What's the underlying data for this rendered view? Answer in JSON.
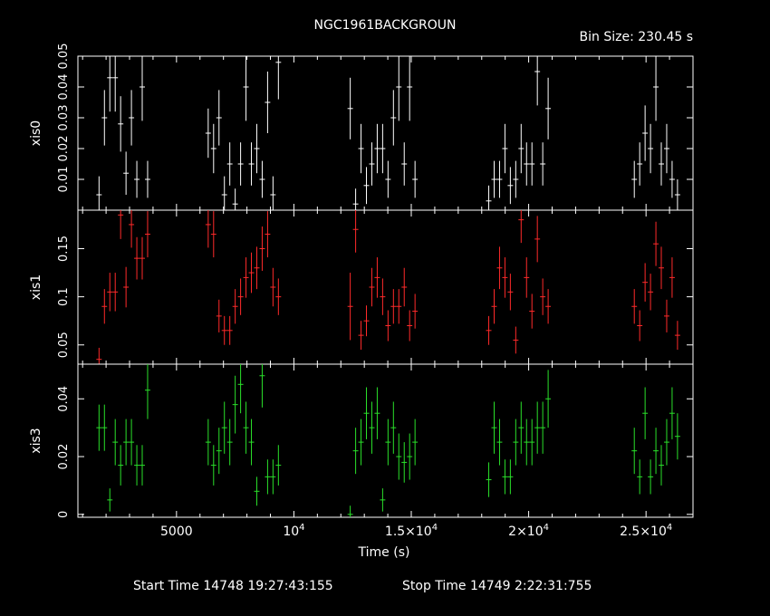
{
  "title": "NGC1961BACKGROUN",
  "bin_size_label": "Bin Size: 230.45 s",
  "footer": {
    "start_label": "Start Time 14748 19:27:43:155",
    "stop_label": "Stop Time 14749  2:22:31:755"
  },
  "chart_data": [
    {
      "type": "scatter",
      "ylabel": "xis0",
      "color": "#ffffff",
      "xlim": [
        800,
        27000
      ],
      "ylim": [
        0,
        0.05
      ],
      "ytick_values": [
        0.01,
        0.02,
        0.03,
        0.04,
        0.05
      ],
      "ytick_labels": [
        "0.01",
        "0.02",
        "0.03",
        "0.04",
        "0.05"
      ],
      "x": [
        1700,
        1930,
        2160,
        2390,
        2620,
        2850,
        3080,
        3310,
        3540,
        3770,
        6350,
        6580,
        6810,
        7040,
        7270,
        7500,
        7730,
        7960,
        8190,
        8420,
        8650,
        8880,
        9110,
        9340,
        12400,
        12630,
        12860,
        13090,
        13320,
        13550,
        13780,
        14010,
        14240,
        14470,
        14700,
        14930,
        15160,
        18300,
        18530,
        18760,
        18990,
        19220,
        19450,
        19680,
        19910,
        20140,
        20370,
        20600,
        20830,
        24500,
        24730,
        24960,
        25190,
        25420,
        25650,
        25880,
        26110,
        26340
      ],
      "y": [
        0.005,
        0.03,
        0.043,
        0.043,
        0.028,
        0.012,
        0.03,
        0.01,
        0.04,
        0.01,
        0.025,
        0.02,
        0.03,
        0.005,
        0.015,
        0.002,
        0.015,
        0.04,
        0.015,
        0.02,
        0.01,
        0.035,
        0.005,
        0.048,
        0.033,
        0.002,
        0.02,
        0.008,
        0.015,
        0.02,
        0.02,
        0.01,
        0.03,
        0.04,
        0.015,
        0.04,
        0.01,
        0.003,
        0.01,
        0.01,
        0.02,
        0.008,
        0.01,
        0.02,
        0.015,
        0.015,
        0.045,
        0.015,
        0.033,
        0.01,
        0.015,
        0.025,
        0.02,
        0.04,
        0.015,
        0.02,
        0.01,
        0.005
      ],
      "err": [
        0.006,
        0.009,
        0.011,
        0.011,
        0.009,
        0.007,
        0.009,
        0.006,
        0.011,
        0.006,
        0.008,
        0.008,
        0.009,
        0.006,
        0.007,
        0.005,
        0.007,
        0.011,
        0.007,
        0.008,
        0.006,
        0.01,
        0.006,
        0.012,
        0.01,
        0.005,
        0.008,
        0.006,
        0.007,
        0.008,
        0.008,
        0.006,
        0.009,
        0.011,
        0.007,
        0.011,
        0.006,
        0.005,
        0.006,
        0.006,
        0.008,
        0.006,
        0.006,
        0.008,
        0.007,
        0.007,
        0.011,
        0.007,
        0.01,
        0.006,
        0.007,
        0.009,
        0.008,
        0.011,
        0.007,
        0.008,
        0.006,
        0.005
      ]
    },
    {
      "type": "scatter",
      "ylabel": "xis1",
      "color": "#ff2a2a",
      "xlim": [
        800,
        27000
      ],
      "ylim": [
        0.03,
        0.19
      ],
      "ytick_values": [
        0.05,
        0.1,
        0.15
      ],
      "ytick_labels": [
        "0.05",
        "0.1",
        "0.15"
      ],
      "x": [
        1700,
        1930,
        2160,
        2390,
        2620,
        2850,
        3080,
        3310,
        3540,
        3770,
        6350,
        6580,
        6810,
        7040,
        7270,
        7500,
        7730,
        7960,
        8190,
        8420,
        8650,
        8880,
        9110,
        9340,
        12400,
        12630,
        12860,
        13090,
        13320,
        13550,
        13780,
        14010,
        14240,
        14470,
        14700,
        14930,
        15160,
        18300,
        18530,
        18760,
        18990,
        19220,
        19450,
        19680,
        19910,
        20140,
        20370,
        20600,
        20830,
        24500,
        24730,
        24960,
        25190,
        25420,
        25650,
        25880,
        26110,
        26340
      ],
      "y": [
        0.035,
        0.09,
        0.105,
        0.105,
        0.185,
        0.11,
        0.175,
        0.14,
        0.14,
        0.165,
        0.175,
        0.165,
        0.08,
        0.065,
        0.065,
        0.09,
        0.1,
        0.12,
        0.125,
        0.13,
        0.15,
        0.165,
        0.11,
        0.1,
        0.09,
        0.17,
        0.06,
        0.075,
        0.11,
        0.12,
        0.1,
        0.07,
        0.09,
        0.09,
        0.11,
        0.07,
        0.085,
        0.065,
        0.09,
        0.13,
        0.12,
        0.105,
        0.055,
        0.18,
        0.12,
        0.085,
        0.16,
        0.1,
        0.09,
        0.09,
        0.07,
        0.115,
        0.105,
        0.155,
        0.13,
        0.08,
        0.12,
        0.06
      ],
      "err": [
        0.012,
        0.018,
        0.02,
        0.02,
        0.025,
        0.021,
        0.024,
        0.022,
        0.022,
        0.024,
        0.024,
        0.024,
        0.017,
        0.015,
        0.015,
        0.018,
        0.019,
        0.021,
        0.021,
        0.022,
        0.023,
        0.024,
        0.02,
        0.019,
        0.035,
        0.024,
        0.015,
        0.016,
        0.02,
        0.021,
        0.019,
        0.016,
        0.018,
        0.018,
        0.02,
        0.016,
        0.018,
        0.015,
        0.018,
        0.022,
        0.021,
        0.019,
        0.014,
        0.024,
        0.021,
        0.018,
        0.024,
        0.019,
        0.018,
        0.018,
        0.016,
        0.02,
        0.019,
        0.023,
        0.022,
        0.017,
        0.021,
        0.015
      ]
    },
    {
      "type": "scatter",
      "ylabel": "xis3",
      "color": "#2ae02a",
      "xlim": [
        800,
        27000
      ],
      "ylim": [
        -0.001,
        0.052
      ],
      "ytick_values": [
        0,
        0.02,
        0.04
      ],
      "ytick_labels": [
        "0",
        "0.02",
        "0.04"
      ],
      "x": [
        1700,
        1930,
        2160,
        2390,
        2620,
        2850,
        3080,
        3310,
        3540,
        3770,
        6350,
        6580,
        6810,
        7040,
        7270,
        7500,
        7730,
        7960,
        8190,
        8420,
        8650,
        8880,
        9110,
        9340,
        12400,
        12630,
        12860,
        13090,
        13320,
        13550,
        13780,
        14010,
        14240,
        14470,
        14700,
        14930,
        15160,
        18300,
        18530,
        18760,
        18990,
        19220,
        19450,
        19680,
        19910,
        20140,
        20370,
        20600,
        20830,
        24500,
        24730,
        24960,
        25190,
        25420,
        25650,
        25880,
        26110,
        26340
      ],
      "y": [
        0.03,
        0.03,
        0.005,
        0.025,
        0.017,
        0.025,
        0.025,
        0.017,
        0.017,
        0.043,
        0.025,
        0.017,
        0.022,
        0.03,
        0.025,
        0.038,
        0.045,
        0.03,
        0.025,
        0.008,
        0.048,
        0.013,
        0.013,
        0.017,
        0.0,
        0.022,
        0.025,
        0.035,
        0.03,
        0.035,
        0.005,
        0.025,
        0.03,
        0.02,
        0.018,
        0.02,
        0.025,
        0.012,
        0.03,
        0.025,
        0.013,
        0.013,
        0.025,
        0.03,
        0.025,
        0.025,
        0.03,
        0.03,
        0.04,
        0.022,
        0.013,
        0.035,
        0.013,
        0.022,
        0.017,
        0.025,
        0.035,
        0.027
      ],
      "err": [
        0.008,
        0.008,
        0.004,
        0.008,
        0.007,
        0.008,
        0.008,
        0.007,
        0.007,
        0.01,
        0.008,
        0.007,
        0.008,
        0.009,
        0.008,
        0.01,
        0.01,
        0.009,
        0.008,
        0.005,
        0.011,
        0.006,
        0.006,
        0.007,
        0.003,
        0.008,
        0.008,
        0.009,
        0.009,
        0.009,
        0.004,
        0.008,
        0.009,
        0.008,
        0.007,
        0.008,
        0.008,
        0.006,
        0.009,
        0.008,
        0.006,
        0.006,
        0.008,
        0.009,
        0.008,
        0.008,
        0.009,
        0.009,
        0.01,
        0.008,
        0.006,
        0.009,
        0.006,
        0.008,
        0.007,
        0.008,
        0.009,
        0.008
      ]
    }
  ],
  "x_axis": {
    "xlabel": "Time (s)",
    "major_ticks": [
      5000,
      10000,
      15000,
      20000,
      25000
    ],
    "minor_step": 1000,
    "tick_labels": [
      {
        "value": 5000,
        "mant": "5000",
        "exp": ""
      },
      {
        "value": 10000,
        "mant": "10",
        "exp": "4"
      },
      {
        "value": 15000,
        "mant": "1.5×10",
        "exp": "4"
      },
      {
        "value": 20000,
        "mant": "2×10",
        "exp": "4"
      },
      {
        "value": 25000,
        "mant": "2.5×10",
        "exp": "4"
      }
    ],
    "bin_half_width": 115
  }
}
